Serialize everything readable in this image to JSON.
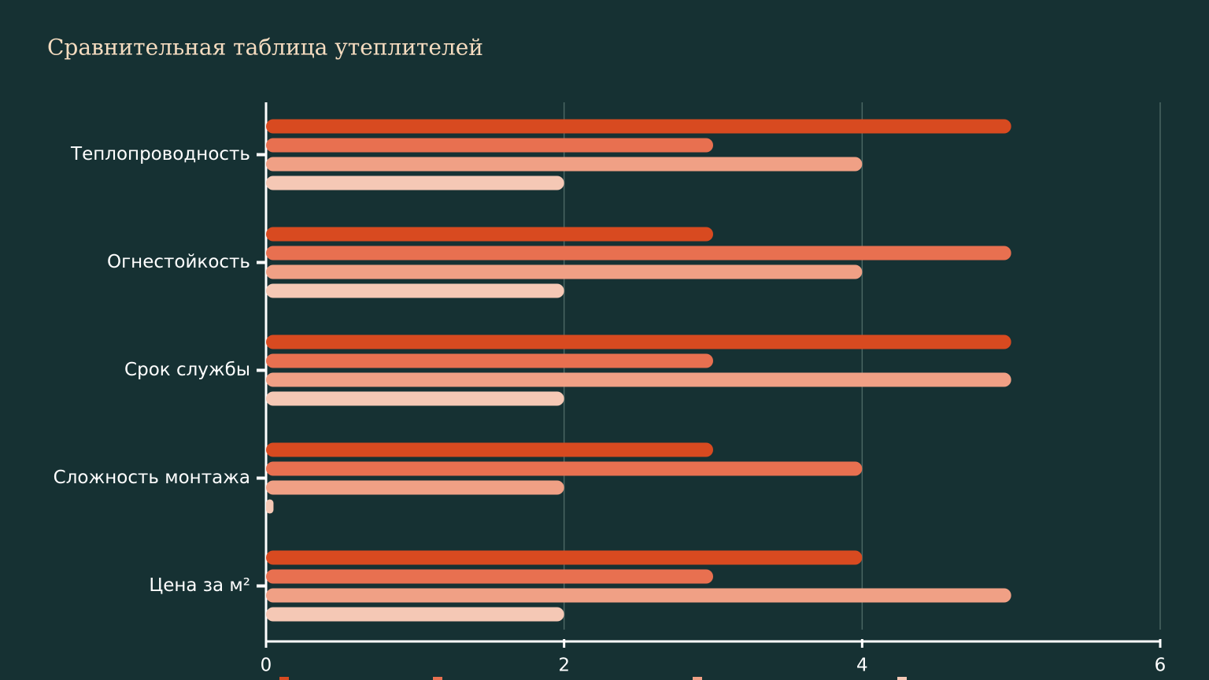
{
  "chart_data": {
    "type": "hbar",
    "title": "Сравнительная таблица утеплителей",
    "categories": [
      "Теплопроводность",
      "Огнестойкость",
      "Срок службы",
      "Сложность монтажа",
      "Цена за м²"
    ],
    "series": [
      {
        "color": "#d84a20",
        "values": [
          5,
          3,
          5,
          3,
          4
        ]
      },
      {
        "color": "#e87050",
        "values": [
          3,
          5,
          3,
          4,
          3
        ]
      },
      {
        "color": "#f0a085",
        "values": [
          4,
          4,
          5,
          2,
          5
        ]
      },
      {
        "color": "#f5c8b5",
        "values": [
          2,
          2,
          2,
          0.05,
          2
        ]
      }
    ],
    "xlim": [
      0,
      6
    ],
    "xticks": [
      0,
      2,
      4,
      6
    ],
    "grid": true
  }
}
